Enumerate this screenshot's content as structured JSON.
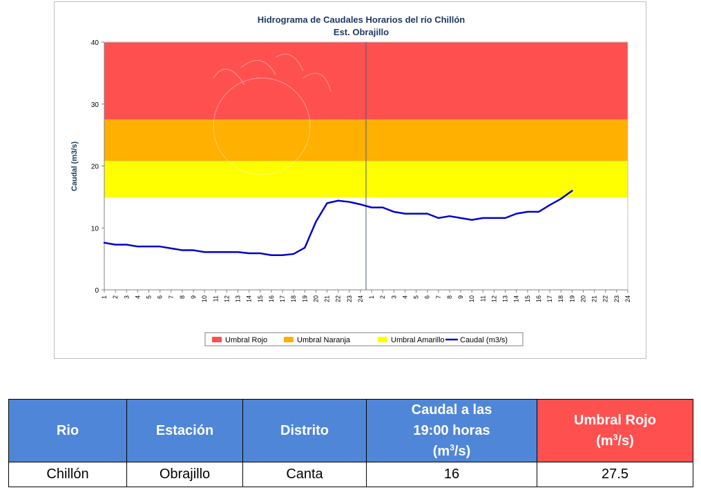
{
  "chart_data": {
    "type": "line",
    "title": "Hidrograma de Caudales Horarios del río Chillón",
    "subtitle": "Est. Obrajillo",
    "ylabel": "Caudal  (m3/s)",
    "xlabel": "",
    "ylim": [
      0,
      40
    ],
    "yticks": [
      0,
      10,
      20,
      30,
      40
    ],
    "categories": [
      "1",
      "2",
      "3",
      "4",
      "5",
      "6",
      "7",
      "8",
      "9",
      "10",
      "11",
      "12",
      "13",
      "14",
      "15",
      "16",
      "17",
      "18",
      "19",
      "20",
      "21",
      "22",
      "23",
      "24",
      "1",
      "2",
      "3",
      "4",
      "5",
      "6",
      "7",
      "8",
      "9",
      "10",
      "11",
      "12",
      "13",
      "14",
      "15",
      "16",
      "17",
      "18",
      "19",
      "20",
      "21",
      "22",
      "23",
      "24"
    ],
    "thresholds": [
      {
        "name": "Umbral Rojo",
        "from": 27.5,
        "to": 40,
        "color": "#ff5050"
      },
      {
        "name": "Umbral Naranja",
        "from": 20.8,
        "to": 27.5,
        "color": "#ffb000"
      },
      {
        "name": "Umbral Amarillo",
        "from": 14.9,
        "to": 20.8,
        "color": "#ffff00"
      }
    ],
    "series": [
      {
        "name": "Caudal (m3/s)",
        "color": "#0000cc",
        "values": [
          7.6,
          7.3,
          7.3,
          7.0,
          7.0,
          7.0,
          6.7,
          6.4,
          6.4,
          6.1,
          6.1,
          6.1,
          6.1,
          5.9,
          5.9,
          5.6,
          5.6,
          5.8,
          6.8,
          11.0,
          14.0,
          14.4,
          14.2,
          13.8,
          13.3,
          13.3,
          12.6,
          12.3,
          12.3,
          12.3,
          11.6,
          11.9,
          11.6,
          11.3,
          11.6,
          11.6,
          11.6,
          12.3,
          12.6,
          12.6,
          13.7,
          14.7,
          16.0,
          null,
          null,
          null,
          null,
          null
        ]
      }
    ],
    "legend": "bottom",
    "grid": false,
    "day_separator_after_category": 24
  },
  "table": {
    "headers": [
      "Rio",
      "Estación",
      "Distrito",
      "Caudal a las",
      "19:00 horas",
      "(m",
      "/s)",
      "Umbral Rojo",
      "(m",
      "/s)"
    ],
    "sup": "3",
    "row": [
      "Chillón",
      "Obrajillo",
      "Canta",
      "16",
      "27.5"
    ]
  }
}
